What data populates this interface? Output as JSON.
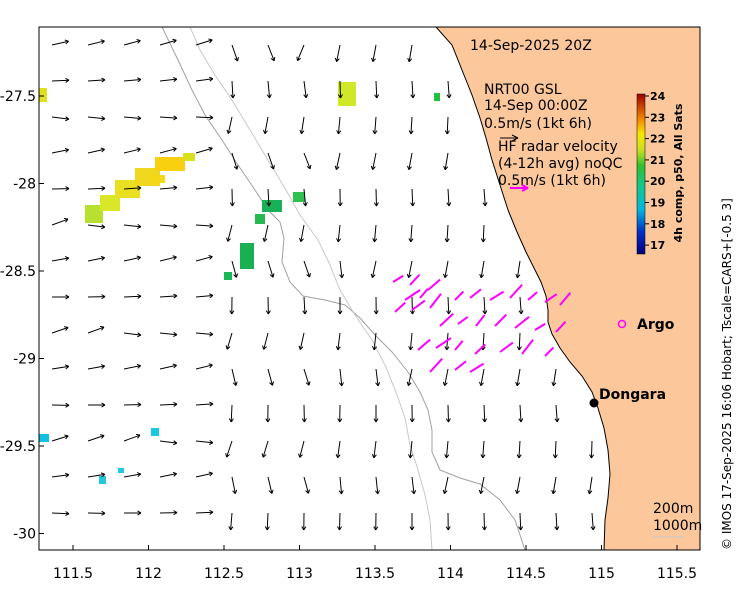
{
  "title": "14-Sep-2025 20Z",
  "legend": {
    "nrt_source": "NRT00 GSL",
    "nrt_time": "14-Sep 00:00Z",
    "nrt_scale": "0.5m/s (1kt 6h)",
    "hf_title": "HF radar velocity",
    "hf_sub": "(4-12h avg) noQC",
    "hf_scale": "0.5m/s (1kt 6h)"
  },
  "colorbar": {
    "label": "4h comp, p50, All Sats",
    "ticks": [
      "24",
      "23",
      "22",
      "21",
      "20",
      "19",
      "18",
      "17"
    ]
  },
  "places": {
    "argo_label": "Argo",
    "town_label": "Dongara"
  },
  "depth_legend": {
    "shallow": "200m",
    "deep": "1000m"
  },
  "credit": "© IMOS 17-Sep-2025 16:06 Hobart; Tscale=CARS+[-0.5 3]",
  "x_axis": {
    "ticks": [
      "111.5",
      "112",
      "112.5",
      "113",
      "113.5",
      "114",
      "114.5",
      "115",
      "115.5"
    ]
  },
  "y_axis": {
    "ticks": [
      "-27.5",
      "-28",
      "-28.5",
      "-29",
      "-29.5",
      "-30"
    ]
  },
  "colors": {
    "land": "#fcc89b",
    "coast": "#000000",
    "isobath": "#a0a0a0",
    "hf_vector": "#ff00ff",
    "argo": "#ff00ff"
  }
}
